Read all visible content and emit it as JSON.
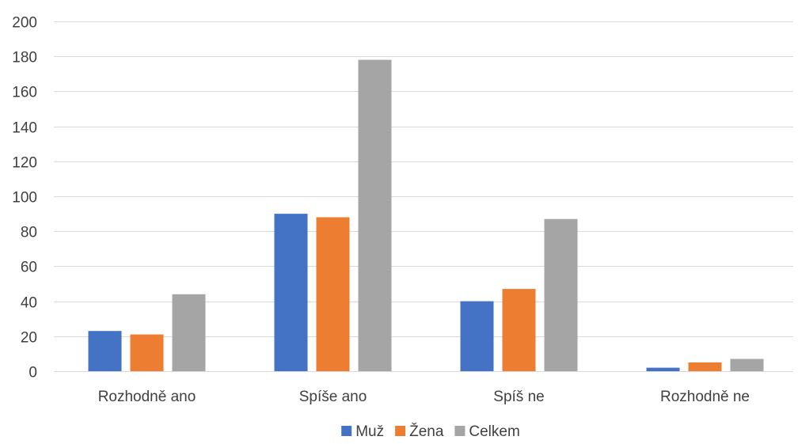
{
  "chart_data": {
    "type": "bar",
    "categories": [
      "Rozhodně ano",
      "Spíše ano",
      "Spíš ne",
      "Rozhodně ne"
    ],
    "series": [
      {
        "name": "Muž",
        "values": [
          23,
          90,
          40,
          2
        ],
        "color": "#4472c4"
      },
      {
        "name": "Žena",
        "values": [
          21,
          88,
          47,
          5
        ],
        "color": "#ed7d31"
      },
      {
        "name": "Celkem",
        "values": [
          44,
          178,
          87,
          7
        ],
        "color": "#a5a5a5"
      }
    ],
    "ylim": [
      0,
      200
    ],
    "yticks": [
      0,
      20,
      40,
      60,
      80,
      100,
      120,
      140,
      160,
      180,
      200
    ],
    "grid": true,
    "legend_position": "bottom"
  }
}
